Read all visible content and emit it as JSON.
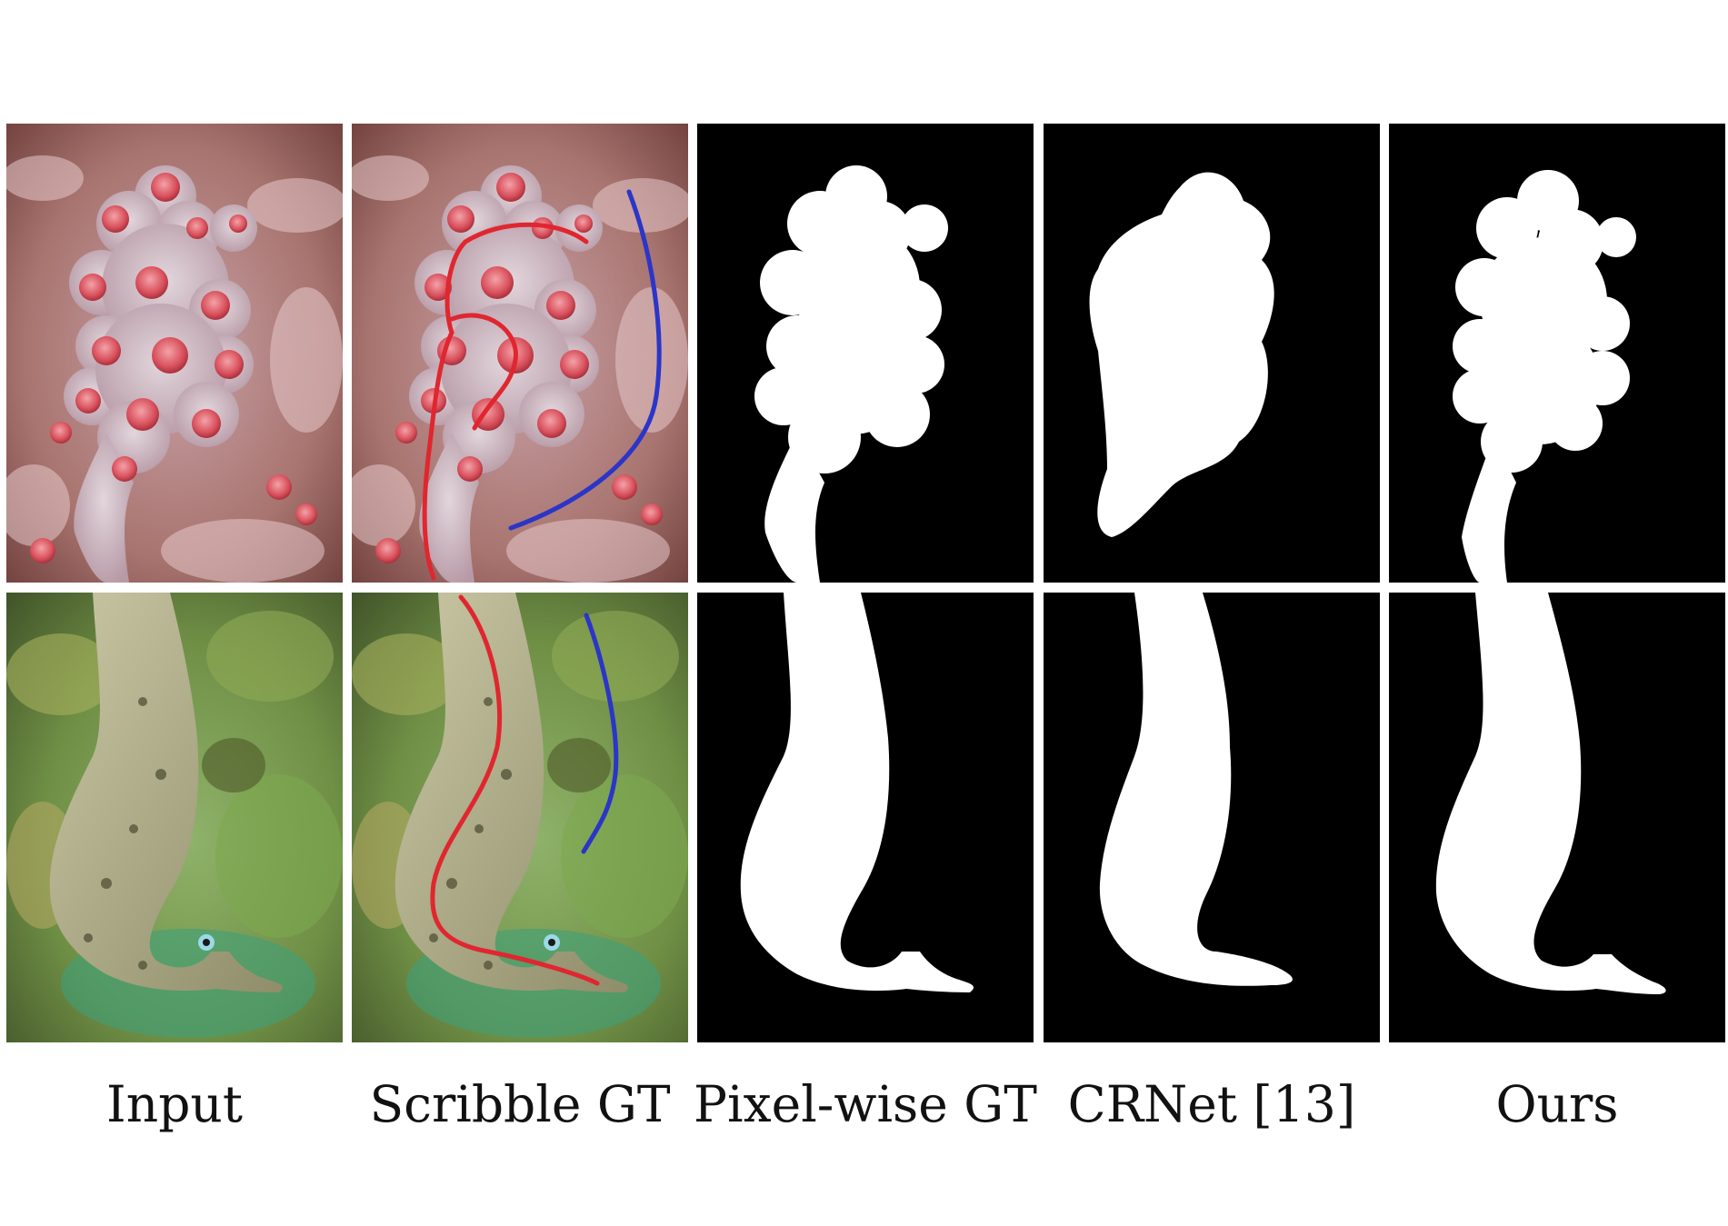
{
  "figure": {
    "columns": [
      {
        "id": "input",
        "caption": "Input"
      },
      {
        "id": "scribble",
        "caption": "Scribble GT"
      },
      {
        "id": "pixel",
        "caption": "Pixel-wise GT"
      },
      {
        "id": "crnet",
        "caption": "CRNet [13]"
      },
      {
        "id": "ours",
        "caption": "Ours"
      }
    ],
    "rows": [
      {
        "id": "pygmy-seahorse",
        "subject": "seahorse on coral"
      },
      {
        "id": "pipefish",
        "subject": "pipefish on algae"
      }
    ],
    "colors": {
      "background": "#ffffff",
      "mask_background": "#000000",
      "mask_foreground": "#ffffff",
      "foreground_scribble": "#e0262f",
      "background_scribble": "#2b35c8"
    }
  }
}
